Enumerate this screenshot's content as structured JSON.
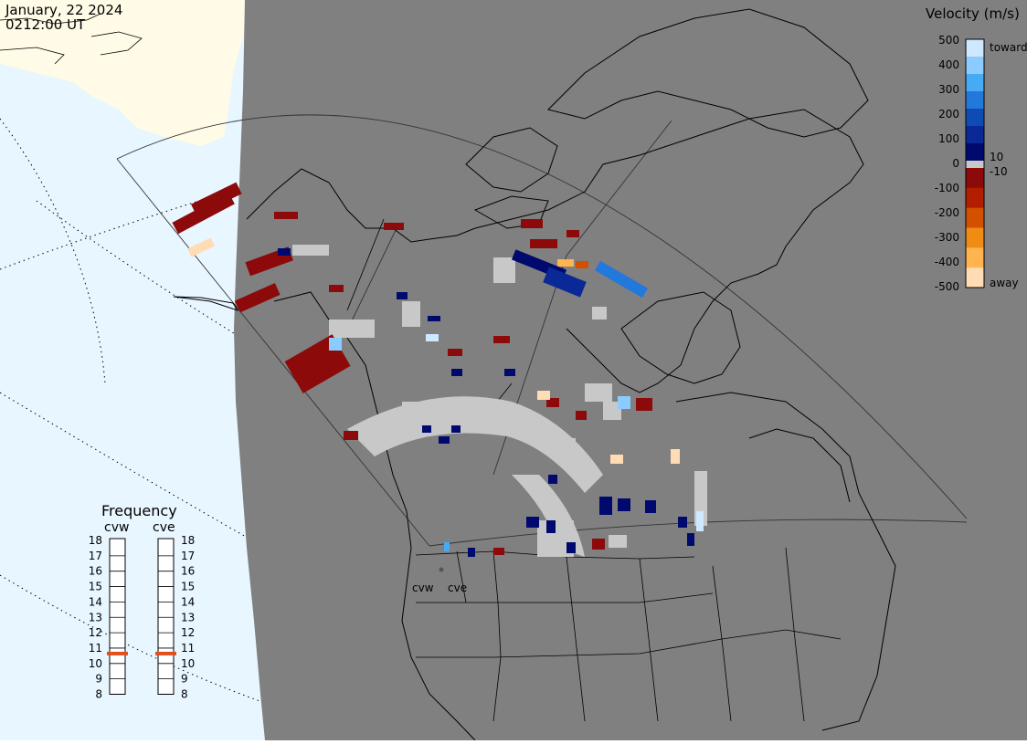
{
  "header": {
    "date": "January, 22 2024",
    "time": "0212:00 UT"
  },
  "velocity_legend": {
    "title": "Velocity (m/s)",
    "ticks": [
      "500",
      "400",
      "300",
      "200",
      "100",
      "10",
      "0",
      "-10",
      "-100",
      "-200",
      "-300",
      "-400",
      "-500"
    ],
    "toward_label": "toward",
    "away_label": "away",
    "colors": [
      "#cde8ff",
      "#8ccbff",
      "#46aaf5",
      "#2378dc",
      "#0f4bb4",
      "#0a2896",
      "#000a6e",
      "#c8c8c8",
      "#8c0a0a",
      "#b41e00",
      "#d25000",
      "#f08c14",
      "#ffb450",
      "#ffdcb4"
    ]
  },
  "frequency_panel": {
    "title": "Frequency",
    "radars": [
      {
        "name": "cvw",
        "current_mhz": 11
      },
      {
        "name": "cve",
        "current_mhz": 11
      }
    ],
    "scale": [
      "18",
      "17",
      "16",
      "15",
      "14",
      "13",
      "12",
      "11",
      "10",
      "9",
      "8"
    ],
    "marker_color": "#e0501e"
  },
  "map": {
    "site_labels": [
      "cvw",
      "cve"
    ],
    "ocean_color": "#e8f6ff",
    "land_color": "#fffbe6",
    "nightside_color": "#808080",
    "ground_scatter_color": "#c8c8c8"
  }
}
